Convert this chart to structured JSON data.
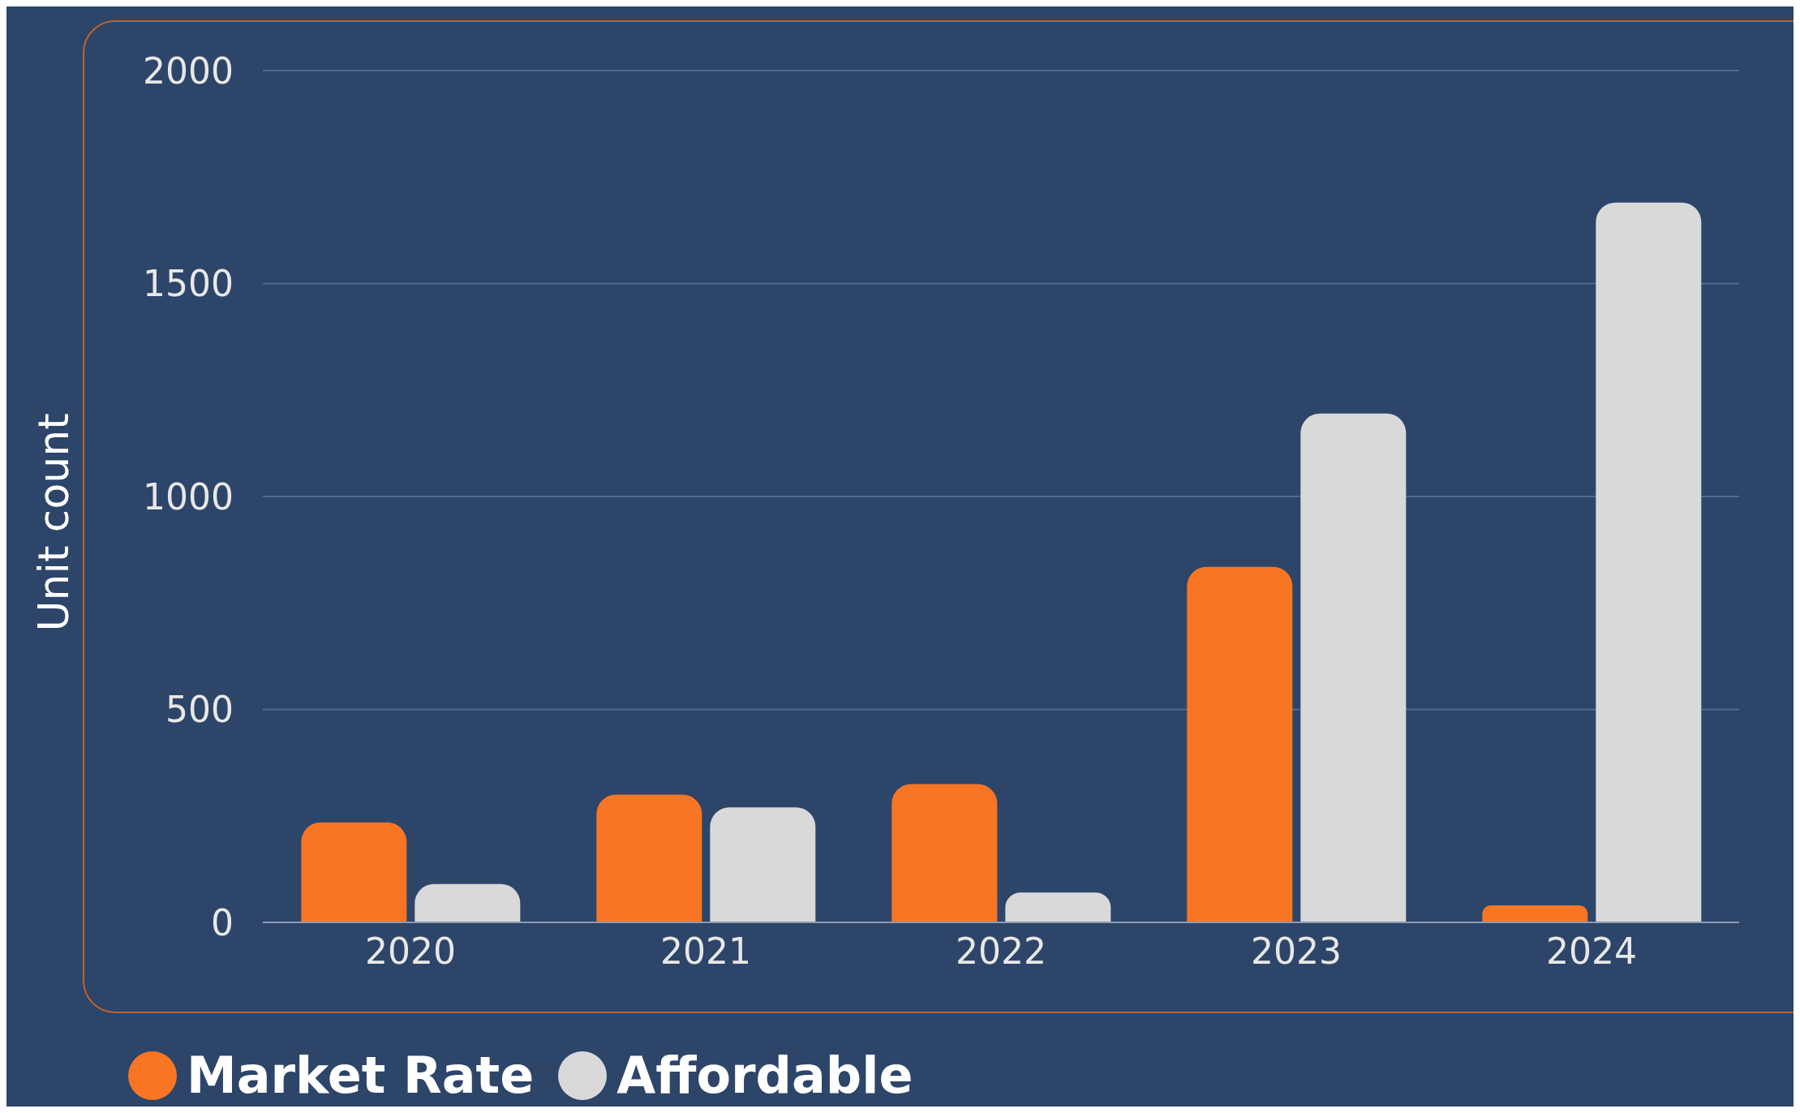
{
  "chart_data": {
    "type": "bar",
    "ylabel": "Unit count",
    "categories": [
      "2020",
      "2021",
      "2022",
      "2023",
      "2024"
    ],
    "series": [
      {
        "name": "Market Rate",
        "color": "#f87524",
        "values": [
          235,
          300,
          325,
          835,
          40
        ]
      },
      {
        "name": "Affordable",
        "color": "#d9d9d9",
        "values": [
          90,
          270,
          70,
          1195,
          1690
        ]
      }
    ],
    "ylim": [
      0,
      2000
    ],
    "yticks": [
      0,
      500,
      1000,
      1500,
      2000
    ],
    "grid": "y",
    "legend": "bottom left"
  }
}
